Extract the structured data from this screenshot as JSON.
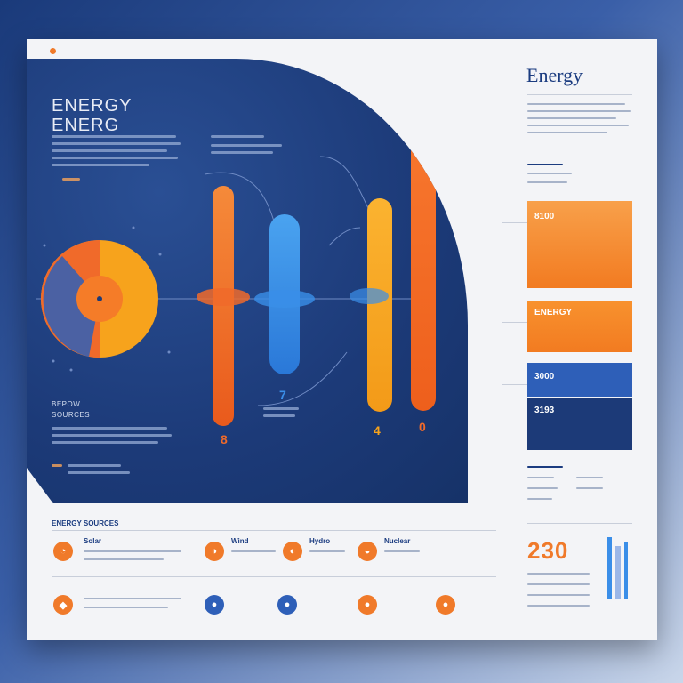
{
  "header": {
    "title_line1": "ENERGY",
    "title_line2": "ENERG",
    "right_title": "Energy"
  },
  "panel": {
    "sub_label_1": "SOURCES",
    "bottom_left_label_1": "BEPOW",
    "bottom_left_label_2": "SOURCES"
  },
  "bars": [
    {
      "name": "bar-1",
      "color": "#f06a2a",
      "value_label": "8"
    },
    {
      "name": "bar-2",
      "color": "#3a8ee8",
      "value_label": "7"
    },
    {
      "name": "bar-3",
      "color": "#f7a31c",
      "value_label": "4"
    },
    {
      "name": "bar-4",
      "color": "#f26a24",
      "value_label": "0"
    }
  ],
  "cards": [
    {
      "label": "8100",
      "color": "#f2842a"
    },
    {
      "label": "ENERGY",
      "color": "#f27b21"
    },
    {
      "label": "3000",
      "color": "#2e5fb8"
    },
    {
      "label": "3193",
      "color": "#1c3a78"
    }
  ],
  "bottom_row": {
    "header": "ENERGY SOURCES",
    "items": [
      {
        "label": "Solar",
        "icon": "orange"
      },
      {
        "label": "Wind",
        "icon": "orange"
      },
      {
        "label": "Hydro",
        "icon": "orange"
      },
      {
        "label": "Nuclear",
        "icon": "orange"
      }
    ],
    "stat": "230"
  },
  "colors": {
    "navy": "#1c3a78",
    "orange": "#f07a2a",
    "blue": "#3a8ee8",
    "yellow": "#f7a31c"
  }
}
